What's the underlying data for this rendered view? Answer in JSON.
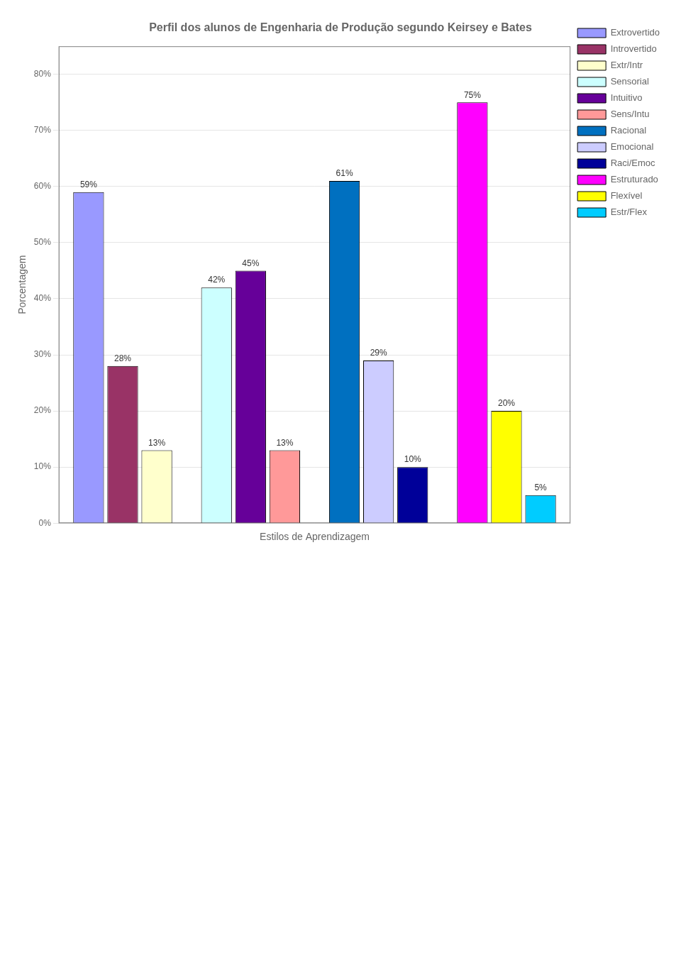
{
  "chart_data": {
    "type": "bar",
    "title": "Perfil dos alunos de Engenharia de Produção segundo Keirsey e Bates",
    "x_label": "Estilos de Aprendizagem",
    "y_label": "Porcentagem",
    "categories": [
      null,
      null,
      null,
      null
    ],
    "series": [
      {
        "name": "Extrovertido",
        "color": "#9999ff",
        "values": [
          59,
          null,
          null,
          null
        ],
        "value_labels": [
          "59%",
          null,
          null,
          null
        ]
      },
      {
        "name": "Introvertido",
        "color": "#993366",
        "values": [
          28,
          null,
          null,
          null
        ],
        "value_labels": [
          "28%",
          null,
          null,
          null
        ]
      },
      {
        "name": "Extr/Intr",
        "color": "#ffffcc",
        "values": [
          13,
          null,
          null,
          null
        ],
        "value_labels": [
          "13%",
          null,
          null,
          null
        ]
      },
      {
        "name": "Sensorial",
        "color": "#ccffff",
        "values": [
          null,
          42,
          null,
          null
        ],
        "value_labels": [
          null,
          "42%",
          null,
          null
        ]
      },
      {
        "name": "Intuitivo",
        "color": "#660099",
        "values": [
          null,
          45,
          null,
          null
        ],
        "value_labels": [
          null,
          "45%",
          null,
          null
        ]
      },
      {
        "name": "Sens/Intu",
        "color": "#ff9999",
        "values": [
          null,
          13,
          null,
          null
        ],
        "value_labels": [
          null,
          "13%",
          null,
          null
        ]
      },
      {
        "name": "Racional",
        "color": "#0070c0",
        "values": [
          null,
          null,
          61,
          null
        ],
        "value_labels": [
          null,
          null,
          "61%",
          null
        ]
      },
      {
        "name": "Emocional",
        "color": "#ccccff",
        "values": [
          null,
          null,
          29,
          null
        ],
        "value_labels": [
          null,
          null,
          "29%",
          null
        ]
      },
      {
        "name": "Raci/Emoc",
        "color": "#000099",
        "values": [
          null,
          null,
          10,
          null
        ],
        "value_labels": [
          null,
          null,
          "10%",
          null
        ]
      },
      {
        "name": "Estruturado",
        "color": "#ff00ff",
        "values": [
          null,
          null,
          null,
          75
        ],
        "value_labels": [
          null,
          null,
          null,
          "75%"
        ]
      },
      {
        "name": "Flexível",
        "color": "#ffff00",
        "values": [
          null,
          null,
          null,
          20
        ],
        "value_labels": [
          null,
          null,
          null,
          "20%"
        ]
      },
      {
        "name": "Estr/Flex",
        "color": "#00ccff",
        "values": [
          null,
          null,
          null,
          5
        ],
        "value_labels": [
          null,
          null,
          null,
          "5%"
        ]
      }
    ],
    "ylim": [
      0,
      85
    ],
    "yticks": [
      {
        "value": 0,
        "label": "0%"
      },
      {
        "value": 10,
        "label": "10%"
      },
      {
        "value": 20,
        "label": "20%"
      },
      {
        "value": 30,
        "label": "30%"
      },
      {
        "value": 40,
        "label": "40%"
      },
      {
        "value": 50,
        "label": "50%"
      },
      {
        "value": 60,
        "label": "60%"
      },
      {
        "value": 70,
        "label": "70%"
      },
      {
        "value": 80,
        "label": "80%"
      }
    ],
    "grid": true,
    "legend": "right",
    "data_labels": true,
    "tick_labels": "y"
  }
}
